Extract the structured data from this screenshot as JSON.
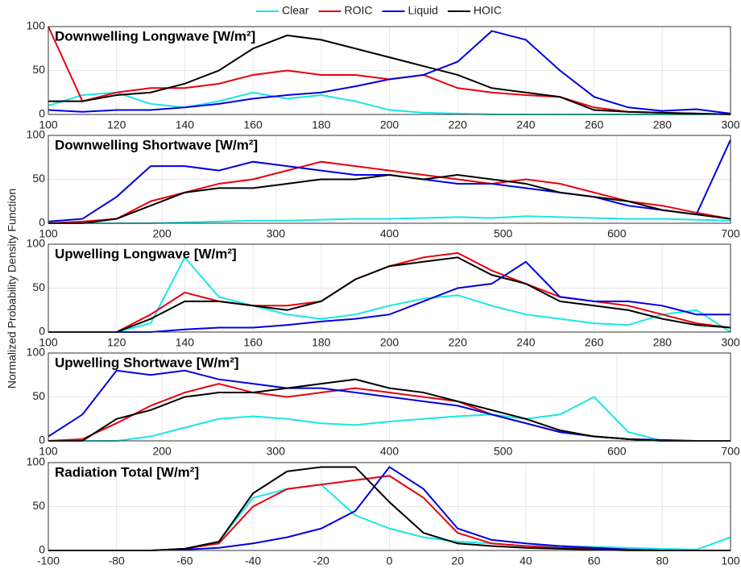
{
  "chart_data": [
    {
      "type": "line",
      "title": "Downwelling Longwave [W/m²]",
      "x": [
        100,
        110,
        120,
        130,
        140,
        150,
        160,
        170,
        180,
        190,
        200,
        210,
        220,
        230,
        240,
        250,
        260,
        270,
        280,
        290,
        300
      ],
      "series": [
        {
          "name": "Clear",
          "color": "#19e6e6",
          "values": [
            10,
            22,
            25,
            12,
            8,
            15,
            25,
            18,
            22,
            15,
            5,
            2,
            1,
            0,
            0,
            0,
            0,
            0,
            0,
            0,
            0
          ]
        },
        {
          "name": "ROIC",
          "color": "#e8000b",
          "values": [
            100,
            15,
            25,
            30,
            30,
            35,
            45,
            50,
            45,
            45,
            40,
            45,
            30,
            25,
            22,
            20,
            8,
            3,
            2,
            1,
            0
          ]
        },
        {
          "name": "Liquid",
          "color": "#0000e0",
          "values": [
            5,
            3,
            5,
            5,
            8,
            12,
            18,
            22,
            25,
            32,
            40,
            45,
            60,
            95,
            85,
            50,
            20,
            8,
            4,
            6,
            1
          ]
        },
        {
          "name": "HOIC",
          "color": "#000000",
          "values": [
            15,
            15,
            22,
            25,
            35,
            50,
            75,
            90,
            85,
            75,
            65,
            55,
            45,
            30,
            25,
            20,
            5,
            3,
            2,
            1,
            0
          ]
        }
      ],
      "xlim": [
        100,
        300
      ],
      "ylim": [
        0,
        100
      ],
      "xticks": [
        100,
        120,
        140,
        160,
        180,
        200,
        220,
        240,
        260,
        280,
        300
      ],
      "yticks": [
        0,
        50,
        100
      ],
      "grid": true
    },
    {
      "type": "line",
      "title": "Downwelling Shortwave [W/m²]",
      "x": [
        100,
        130,
        160,
        190,
        220,
        250,
        280,
        310,
        340,
        370,
        400,
        430,
        460,
        490,
        520,
        550,
        580,
        610,
        640,
        670,
        700
      ],
      "series": [
        {
          "name": "Clear",
          "color": "#19e6e6",
          "values": [
            0,
            0,
            0,
            0,
            1,
            2,
            3,
            3,
            4,
            5,
            5,
            6,
            7,
            6,
            8,
            7,
            6,
            5,
            5,
            4,
            3
          ]
        },
        {
          "name": "ROIC",
          "color": "#e8000b",
          "values": [
            0,
            2,
            5,
            25,
            35,
            45,
            50,
            60,
            70,
            65,
            60,
            55,
            50,
            45,
            50,
            45,
            35,
            25,
            20,
            12,
            5
          ]
        },
        {
          "name": "Liquid",
          "color": "#0000e0",
          "values": [
            2,
            5,
            30,
            65,
            65,
            60,
            70,
            65,
            60,
            55,
            55,
            50,
            45,
            45,
            40,
            35,
            30,
            20,
            15,
            10,
            95
          ]
        },
        {
          "name": "HOIC",
          "color": "#000000",
          "values": [
            0,
            0,
            5,
            20,
            35,
            40,
            40,
            45,
            50,
            50,
            55,
            50,
            55,
            50,
            45,
            35,
            30,
            25,
            15,
            10,
            5
          ]
        }
      ],
      "xlim": [
        100,
        700
      ],
      "ylim": [
        0,
        100
      ],
      "xticks": [
        100,
        200,
        300,
        400,
        500,
        600,
        700
      ],
      "yticks": [
        0,
        50,
        100
      ],
      "grid": true
    },
    {
      "type": "line",
      "title": "Upwelling Longwave [W/m²]",
      "ylabel": "Normalized Probability Density Function",
      "x": [
        100,
        110,
        120,
        130,
        140,
        150,
        160,
        170,
        180,
        190,
        200,
        210,
        220,
        230,
        240,
        250,
        260,
        270,
        280,
        290,
        300
      ],
      "series": [
        {
          "name": "Clear",
          "color": "#19e6e6",
          "values": [
            0,
            0,
            0,
            10,
            85,
            40,
            30,
            20,
            15,
            20,
            30,
            38,
            42,
            30,
            20,
            15,
            10,
            8,
            20,
            25,
            0
          ]
        },
        {
          "name": "ROIC",
          "color": "#e8000b",
          "values": [
            0,
            0,
            0,
            20,
            45,
            35,
            30,
            30,
            35,
            60,
            75,
            85,
            90,
            70,
            55,
            40,
            35,
            30,
            20,
            10,
            5
          ]
        },
        {
          "name": "Liquid",
          "color": "#0000e0",
          "values": [
            0,
            0,
            0,
            0,
            3,
            5,
            5,
            8,
            12,
            15,
            20,
            35,
            50,
            55,
            80,
            40,
            35,
            35,
            30,
            20,
            20
          ]
        },
        {
          "name": "HOIC",
          "color": "#000000",
          "values": [
            0,
            0,
            0,
            15,
            35,
            35,
            30,
            25,
            35,
            60,
            75,
            80,
            85,
            65,
            55,
            35,
            30,
            25,
            15,
            8,
            5
          ]
        }
      ],
      "xlim": [
        100,
        300
      ],
      "ylim": [
        0,
        100
      ],
      "xticks": [
        100,
        120,
        140,
        160,
        180,
        200,
        220,
        240,
        260,
        280,
        300
      ],
      "yticks": [
        0,
        50,
        100
      ],
      "grid": true
    },
    {
      "type": "line",
      "title": "Upwelling Shortwave [W/m²]",
      "x": [
        100,
        130,
        160,
        190,
        220,
        250,
        280,
        310,
        340,
        370,
        400,
        430,
        460,
        490,
        520,
        550,
        580,
        610,
        640,
        670,
        700
      ],
      "series": [
        {
          "name": "Clear",
          "color": "#19e6e6",
          "values": [
            0,
            0,
            0,
            5,
            15,
            25,
            28,
            25,
            20,
            18,
            22,
            25,
            28,
            30,
            25,
            30,
            50,
            10,
            0,
            0,
            0
          ]
        },
        {
          "name": "ROIC",
          "color": "#e8000b",
          "values": [
            0,
            2,
            20,
            40,
            55,
            65,
            55,
            50,
            55,
            60,
            55,
            50,
            45,
            30,
            20,
            10,
            5,
            2,
            0,
            0,
            0
          ]
        },
        {
          "name": "Liquid",
          "color": "#0000e0",
          "values": [
            5,
            30,
            80,
            75,
            80,
            70,
            65,
            60,
            60,
            55,
            50,
            45,
            40,
            30,
            20,
            10,
            5,
            2,
            1,
            0,
            0
          ]
        },
        {
          "name": "HOIC",
          "color": "#000000",
          "values": [
            0,
            0,
            25,
            35,
            50,
            55,
            55,
            60,
            65,
            70,
            60,
            55,
            45,
            35,
            25,
            12,
            5,
            2,
            0,
            0,
            0
          ]
        }
      ],
      "xlim": [
        100,
        700
      ],
      "ylim": [
        0,
        100
      ],
      "xticks": [
        100,
        200,
        300,
        400,
        500,
        600,
        700
      ],
      "yticks": [
        0,
        50,
        100
      ],
      "grid": true
    },
    {
      "type": "line",
      "title": "Radiation Total [W/m²]",
      "x": [
        -100,
        -90,
        -80,
        -70,
        -60,
        -50,
        -40,
        -30,
        -20,
        -10,
        0,
        10,
        20,
        30,
        40,
        50,
        60,
        70,
        80,
        90,
        100
      ],
      "series": [
        {
          "name": "Clear",
          "color": "#19e6e6",
          "values": [
            0,
            0,
            0,
            0,
            2,
            10,
            60,
            70,
            75,
            40,
            25,
            15,
            10,
            8,
            5,
            5,
            4,
            3,
            2,
            1,
            15
          ]
        },
        {
          "name": "ROIC",
          "color": "#e8000b",
          "values": [
            0,
            0,
            0,
            0,
            2,
            8,
            50,
            70,
            75,
            80,
            85,
            60,
            20,
            8,
            5,
            3,
            2,
            1,
            0,
            0,
            0
          ]
        },
        {
          "name": "Liquid",
          "color": "#0000e0",
          "values": [
            0,
            0,
            0,
            0,
            1,
            3,
            8,
            15,
            25,
            45,
            95,
            70,
            25,
            12,
            8,
            5,
            3,
            1,
            0,
            0,
            0
          ]
        },
        {
          "name": "HOIC",
          "color": "#000000",
          "values": [
            0,
            0,
            0,
            0,
            2,
            10,
            65,
            90,
            95,
            95,
            55,
            20,
            8,
            5,
            3,
            2,
            1,
            0,
            0,
            0,
            0
          ]
        }
      ],
      "xlim": [
        -100,
        100
      ],
      "ylim": [
        0,
        100
      ],
      "xticks": [
        -100,
        -80,
        -60,
        -40,
        -20,
        0,
        20,
        40,
        60,
        80,
        100
      ],
      "yticks": [
        0,
        50,
        100
      ],
      "grid": true
    }
  ]
}
